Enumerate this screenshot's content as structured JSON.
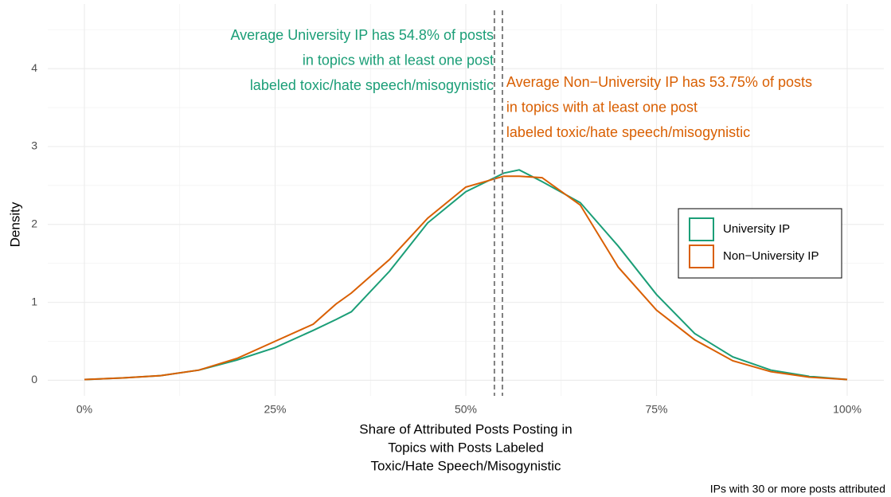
{
  "chart_data": {
    "type": "line",
    "x_label": [
      "Share of Attributed Posts Posting in",
      "Topics with Posts Labeled",
      "Toxic/Hate Speech/Misogynistic"
    ],
    "y_label": "Density",
    "caption": "IPs with 30 or more posts attributed",
    "x": [
      0,
      5,
      10,
      15,
      20,
      25,
      30,
      33,
      35,
      40,
      45,
      50,
      55,
      57,
      60,
      65,
      70,
      75,
      80,
      85,
      90,
      95,
      100
    ],
    "series": [
      {
        "name": "University IP",
        "color": "#1b9e77",
        "values": [
          0.01,
          0.03,
          0.06,
          0.13,
          0.26,
          0.42,
          0.64,
          0.78,
          0.88,
          1.4,
          2.02,
          2.42,
          2.66,
          2.7,
          2.55,
          2.28,
          1.72,
          1.1,
          0.6,
          0.3,
          0.13,
          0.05,
          0.01
        ]
      },
      {
        "name": "Non−University IP",
        "color": "#d95f02",
        "values": [
          0.01,
          0.03,
          0.06,
          0.13,
          0.28,
          0.5,
          0.72,
          0.98,
          1.12,
          1.55,
          2.08,
          2.48,
          2.62,
          2.62,
          2.6,
          2.25,
          1.45,
          0.9,
          0.52,
          0.25,
          0.11,
          0.04,
          0.01
        ]
      }
    ],
    "vlines": [
      {
        "value": 54.8,
        "color": "#1b9e77",
        "label": [
          "Average University IP has 54.8% of posts",
          "in topics with at least one post",
          "labeled toxic/hate speech/misogynistic"
        ]
      },
      {
        "value": 53.75,
        "color": "#d95f02",
        "label": [
          "Average Non−University IP has 53.75% of posts",
          "in topics with at least one post",
          "labeled toxic/hate speech/misogynistic"
        ]
      }
    ],
    "xlim": [
      -4.8,
      104.8
    ],
    "xticks": [
      {
        "value": 0,
        "label": "0%"
      },
      {
        "value": 25,
        "label": "25%"
      },
      {
        "value": 50,
        "label": "50%"
      },
      {
        "value": 75,
        "label": "75%"
      },
      {
        "value": 100,
        "label": "100%"
      }
    ],
    "ylim": [
      -0.2,
      4.83
    ],
    "yticks": [
      0,
      1,
      2,
      3,
      4
    ],
    "grid": true,
    "legend": "right"
  }
}
